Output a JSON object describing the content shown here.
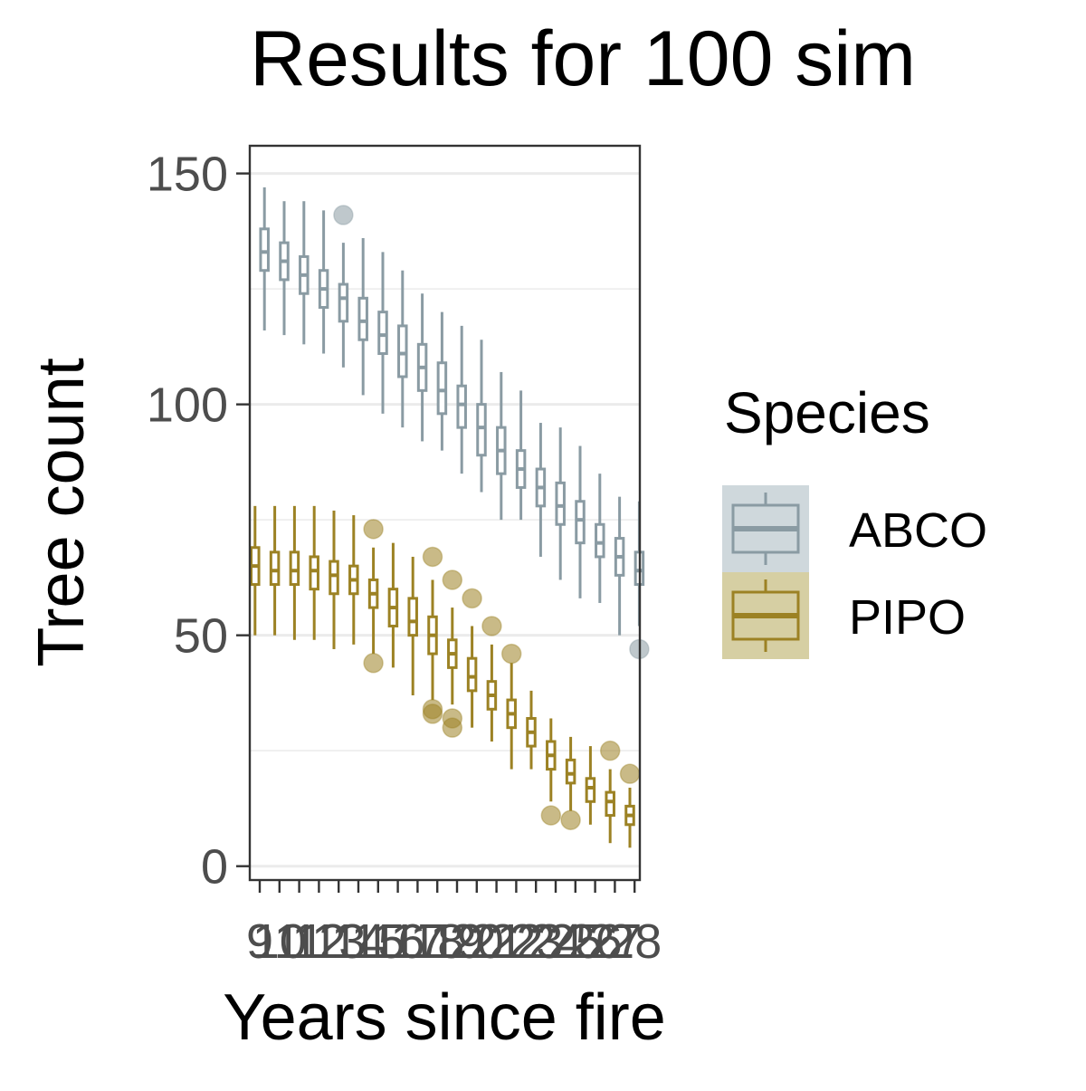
{
  "chart_data": {
    "type": "box",
    "title": "Results for 100 sim",
    "xlabel": "Years since fire",
    "ylabel": "Tree count",
    "ylim": [
      -3,
      156
    ],
    "yticks": [
      0,
      50,
      100,
      150
    ],
    "categories": [
      "9",
      "10",
      "11",
      "12",
      "13",
      "14",
      "15",
      "16",
      "17",
      "18",
      "19",
      "20",
      "21",
      "22",
      "23",
      "24",
      "25",
      "26",
      "27",
      "28"
    ],
    "grid": true,
    "legend": {
      "title": "Species",
      "placement": "right"
    },
    "series": [
      {
        "name": "ABCO",
        "color": "#8a9ba3",
        "fill": "#cfd8dc",
        "boxes": [
          {
            "lw": 116,
            "q1": 129,
            "med": 133,
            "q3": 138,
            "uw": 147,
            "out": []
          },
          {
            "lw": 115,
            "q1": 127,
            "med": 131,
            "q3": 135,
            "uw": 144,
            "out": []
          },
          {
            "lw": 113,
            "q1": 124,
            "med": 128,
            "q3": 132,
            "uw": 144,
            "out": []
          },
          {
            "lw": 111,
            "q1": 121,
            "med": 125,
            "q3": 129,
            "uw": 142,
            "out": []
          },
          {
            "lw": 108,
            "q1": 118,
            "med": 123,
            "q3": 126,
            "uw": 135,
            "out": [
              141
            ]
          },
          {
            "lw": 102,
            "q1": 114,
            "med": 118,
            "q3": 123,
            "uw": 136,
            "out": []
          },
          {
            "lw": 98,
            "q1": 111,
            "med": 115,
            "q3": 120,
            "uw": 133,
            "out": []
          },
          {
            "lw": 95,
            "q1": 106,
            "med": 111,
            "q3": 117,
            "uw": 129,
            "out": []
          },
          {
            "lw": 92,
            "q1": 103,
            "med": 108,
            "q3": 113,
            "uw": 124,
            "out": []
          },
          {
            "lw": 90,
            "q1": 98,
            "med": 103,
            "q3": 109,
            "uw": 120,
            "out": []
          },
          {
            "lw": 85,
            "q1": 95,
            "med": 100,
            "q3": 104,
            "uw": 117,
            "out": []
          },
          {
            "lw": 81,
            "q1": 89,
            "med": 95,
            "q3": 100,
            "uw": 114,
            "out": []
          },
          {
            "lw": 75,
            "q1": 85,
            "med": 90,
            "q3": 95,
            "uw": 107,
            "out": []
          },
          {
            "lw": 75,
            "q1": 82,
            "med": 86,
            "q3": 90,
            "uw": 103,
            "out": []
          },
          {
            "lw": 67,
            "q1": 78,
            "med": 82,
            "q3": 86,
            "uw": 96,
            "out": []
          },
          {
            "lw": 62,
            "q1": 74,
            "med": 78,
            "q3": 83,
            "uw": 95,
            "out": []
          },
          {
            "lw": 58,
            "q1": 70,
            "med": 75,
            "q3": 79,
            "uw": 91,
            "out": []
          },
          {
            "lw": 57,
            "q1": 67,
            "med": 70,
            "q3": 74,
            "uw": 85,
            "out": []
          },
          {
            "lw": 50,
            "q1": 63,
            "med": 67,
            "q3": 71,
            "uw": 80,
            "out": []
          },
          {
            "lw": 52,
            "q1": 61,
            "med": 64,
            "q3": 68,
            "uw": 79,
            "out": [
              47
            ]
          }
        ]
      },
      {
        "name": "PIPO",
        "color": "#9c8224",
        "fill": "#d6cfa3",
        "boxes": [
          {
            "lw": 50,
            "q1": 61,
            "med": 65,
            "q3": 69,
            "uw": 78,
            "out": []
          },
          {
            "lw": 50,
            "q1": 61,
            "med": 64,
            "q3": 68,
            "uw": 78,
            "out": []
          },
          {
            "lw": 49,
            "q1": 61,
            "med": 64,
            "q3": 68,
            "uw": 78,
            "out": []
          },
          {
            "lw": 49,
            "q1": 60,
            "med": 64,
            "q3": 67,
            "uw": 78,
            "out": []
          },
          {
            "lw": 47,
            "q1": 59,
            "med": 63,
            "q3": 66,
            "uw": 77,
            "out": []
          },
          {
            "lw": 48,
            "q1": 59,
            "med": 62,
            "q3": 65,
            "uw": 76,
            "out": []
          },
          {
            "lw": 46,
            "q1": 56,
            "med": 59,
            "q3": 62,
            "uw": 69,
            "out": [
              73,
              44
            ]
          },
          {
            "lw": 43,
            "q1": 52,
            "med": 56,
            "q3": 60,
            "uw": 70,
            "out": []
          },
          {
            "lw": 37,
            "q1": 50,
            "med": 53,
            "q3": 58,
            "uw": 67,
            "out": []
          },
          {
            "lw": 36,
            "q1": 46,
            "med": 50,
            "q3": 54,
            "uw": 62,
            "out": [
              67,
              34,
              33
            ]
          },
          {
            "lw": 35,
            "q1": 43,
            "med": 46,
            "q3": 49,
            "uw": 56,
            "out": [
              62,
              32,
              30
            ]
          },
          {
            "lw": 30,
            "q1": 38,
            "med": 41,
            "q3": 45,
            "uw": 52,
            "out": [
              58
            ]
          },
          {
            "lw": 27,
            "q1": 34,
            "med": 37,
            "q3": 40,
            "uw": 48,
            "out": [
              52
            ]
          },
          {
            "lw": 21,
            "q1": 30,
            "med": 33,
            "q3": 36,
            "uw": 44,
            "out": [
              46
            ]
          },
          {
            "lw": 21,
            "q1": 26,
            "med": 29,
            "q3": 32,
            "uw": 38,
            "out": []
          },
          {
            "lw": 14,
            "q1": 21,
            "med": 24,
            "q3": 27,
            "uw": 32,
            "out": [
              11
            ]
          },
          {
            "lw": 12,
            "q1": 18,
            "med": 20,
            "q3": 23,
            "uw": 28,
            "out": [
              10
            ]
          },
          {
            "lw": 9,
            "q1": 14,
            "med": 17,
            "q3": 19,
            "uw": 26,
            "out": []
          },
          {
            "lw": 5,
            "q1": 11,
            "med": 14,
            "q3": 16,
            "uw": 21,
            "out": [
              25
            ]
          },
          {
            "lw": 4,
            "q1": 9,
            "med": 11,
            "q3": 13,
            "uw": 17,
            "out": [
              20
            ]
          }
        ]
      }
    ]
  }
}
